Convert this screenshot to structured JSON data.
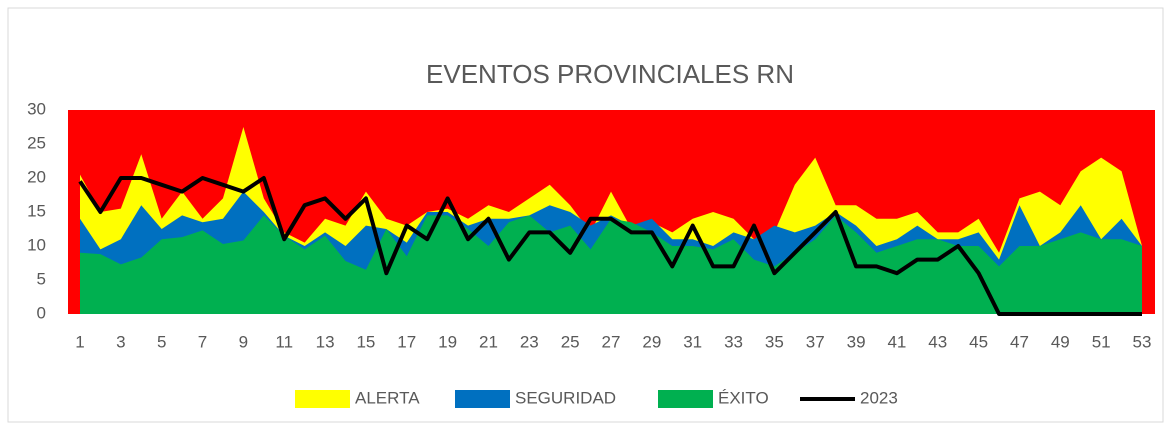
{
  "chart_data": {
    "type": "area",
    "title": "EVENTOS PROVINCIALES RN",
    "categories": [
      1,
      null,
      3,
      null,
      5,
      null,
      7,
      null,
      9,
      null,
      11,
      null,
      13,
      null,
      15,
      null,
      17,
      null,
      19,
      null,
      21,
      null,
      23,
      null,
      25,
      null,
      27,
      null,
      29,
      null,
      31,
      null,
      33,
      null,
      35,
      null,
      37,
      null,
      39,
      null,
      41,
      null,
      43,
      null,
      45,
      null,
      47,
      null,
      49,
      null,
      51,
      null,
      53
    ],
    "series": [
      {
        "name": "ALERTA",
        "color": "#ffff00",
        "kind": "area",
        "values": [
          20.5,
          15,
          15.5,
          23.5,
          14,
          18,
          14,
          17,
          27.5,
          17,
          12,
          10.5,
          14,
          13,
          18,
          14,
          13,
          15,
          15.5,
          14,
          16,
          15,
          17,
          19,
          16,
          12,
          18,
          12.5,
          13.5,
          12,
          14,
          15,
          14,
          11,
          12,
          19,
          23,
          16,
          16,
          14,
          14,
          15,
          12,
          12,
          14,
          9,
          17,
          18,
          16,
          21,
          23,
          21,
          10
        ]
      },
      {
        "name": "SEGURIDAD",
        "color": "#0070c0",
        "kind": "area",
        "values": [
          14,
          9.5,
          11,
          16,
          12.5,
          14.5,
          13.5,
          14,
          18,
          15,
          11.5,
          10,
          12,
          10,
          13,
          12.5,
          10.5,
          15,
          15,
          13,
          14,
          14,
          14.5,
          16,
          15,
          13,
          14.5,
          13,
          14,
          11,
          11,
          10,
          12,
          11,
          13,
          12,
          13,
          15,
          13,
          10,
          11,
          13,
          11,
          11,
          12,
          8,
          16,
          10,
          12,
          16,
          11,
          14,
          10
        ]
      },
      {
        "name": "ÉXITO",
        "color": "#00b050",
        "kind": "area",
        "values": [
          9,
          8.8,
          7.3,
          8.3,
          11,
          11.3,
          12.3,
          10.3,
          10.8,
          14.5,
          11.5,
          9.5,
          11.5,
          7.8,
          6.5,
          12.5,
          8.5,
          14.5,
          14.5,
          12.5,
          10,
          13.5,
          14.5,
          12,
          13,
          9.5,
          14,
          13.5,
          12,
          10,
          10,
          9.5,
          11,
          8,
          7,
          9,
          11,
          14.5,
          12,
          9,
          10,
          11,
          11,
          10,
          10,
          7,
          10,
          10,
          11,
          12,
          11,
          11,
          10
        ]
      },
      {
        "name": "2023",
        "color": "#000000",
        "kind": "line",
        "values": [
          19.5,
          15,
          20,
          20,
          19,
          18,
          20,
          19,
          18,
          20,
          11,
          16,
          17,
          14,
          17,
          6,
          13,
          11,
          17,
          11,
          14,
          8,
          12,
          12,
          9,
          14,
          14,
          12,
          12,
          7,
          13,
          7,
          7,
          13,
          6,
          9,
          12,
          15,
          7,
          7,
          6,
          8,
          8,
          10,
          6,
          0,
          0,
          0,
          0,
          0,
          0,
          0,
          0
        ]
      }
    ],
    "ylim": [
      0,
      30
    ],
    "yticks": [
      0,
      5,
      10,
      15,
      20,
      25,
      30
    ],
    "plot_color": "#ff0000",
    "legend": "bottom"
  }
}
